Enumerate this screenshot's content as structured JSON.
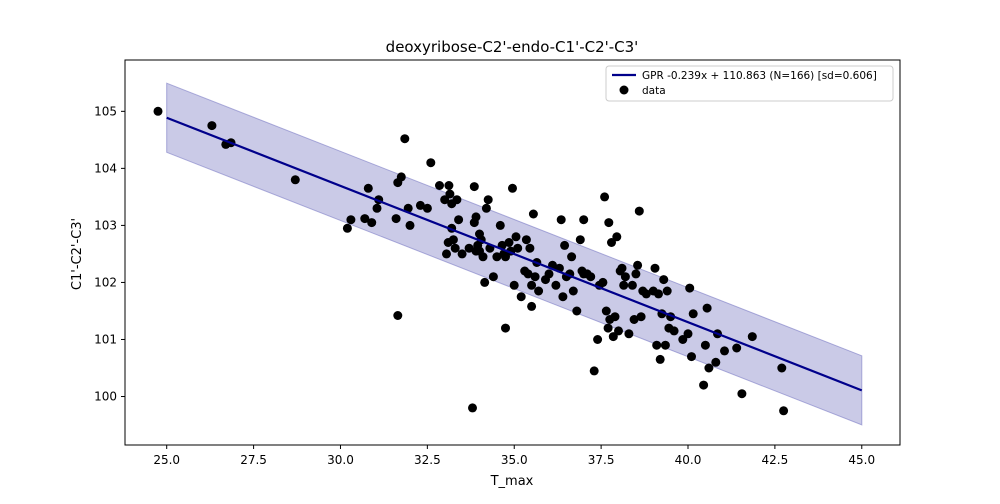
{
  "chart_data": {
    "type": "scatter",
    "title": "deoxyribose-C2'-endo-C1'-C2'-C3'",
    "xlabel": "T_max",
    "ylabel": "C1'-C2'-C3'",
    "xlim": [
      23.8,
      46.1
    ],
    "ylim": [
      99.15,
      105.9
    ],
    "xticks": [
      25.0,
      27.5,
      30.0,
      32.5,
      35.0,
      37.5,
      40.0,
      42.5,
      45.0
    ],
    "xtick_labels": [
      "25.0",
      "27.5",
      "30.0",
      "32.5",
      "35.0",
      "37.5",
      "40.0",
      "42.5",
      "45.0"
    ],
    "yticks": [
      100,
      101,
      102,
      103,
      104,
      105
    ],
    "ytick_labels": [
      "100",
      "101",
      "102",
      "103",
      "104",
      "105"
    ],
    "grid": false,
    "legend_position": "top-right",
    "series": [
      {
        "name": "GPR -0.239x + 110.863 (N=166) [sd=0.606]",
        "kind": "line",
        "color": "#00008b",
        "band_color": "#7b7bc4",
        "x": [
          25.0,
          45.0
        ],
        "y": [
          104.888,
          100.108
        ],
        "band_sd": 0.606
      },
      {
        "name": "data",
        "kind": "scatter",
        "color": "#000000",
        "points": [
          [
            24.75,
            105.0
          ],
          [
            26.3,
            104.75
          ],
          [
            26.7,
            104.42
          ],
          [
            26.85,
            104.45
          ],
          [
            28.7,
            103.8
          ],
          [
            30.2,
            102.95
          ],
          [
            30.3,
            103.1
          ],
          [
            30.7,
            103.12
          ],
          [
            30.8,
            103.65
          ],
          [
            30.9,
            103.05
          ],
          [
            31.05,
            103.3
          ],
          [
            31.1,
            103.45
          ],
          [
            31.6,
            103.12
          ],
          [
            31.65,
            101.42
          ],
          [
            31.65,
            103.75
          ],
          [
            31.75,
            103.85
          ],
          [
            31.85,
            104.52
          ],
          [
            31.95,
            103.3
          ],
          [
            32.0,
            103.0
          ],
          [
            32.3,
            103.35
          ],
          [
            32.5,
            103.3
          ],
          [
            32.6,
            104.1
          ],
          [
            32.85,
            103.7
          ],
          [
            33.0,
            103.45
          ],
          [
            33.05,
            102.5
          ],
          [
            33.1,
            102.7
          ],
          [
            33.12,
            103.7
          ],
          [
            33.15,
            103.55
          ],
          [
            33.2,
            103.38
          ],
          [
            33.2,
            102.95
          ],
          [
            33.25,
            102.75
          ],
          [
            33.3,
            102.6
          ],
          [
            33.35,
            103.45
          ],
          [
            33.4,
            103.1
          ],
          [
            33.5,
            102.5
          ],
          [
            33.7,
            102.6
          ],
          [
            33.8,
            99.8
          ],
          [
            33.85,
            103.68
          ],
          [
            33.85,
            103.05
          ],
          [
            33.9,
            103.15
          ],
          [
            33.9,
            102.55
          ],
          [
            33.95,
            102.65
          ],
          [
            34.0,
            102.85
          ],
          [
            34.0,
            102.55
          ],
          [
            34.05,
            102.75
          ],
          [
            34.1,
            102.45
          ],
          [
            34.15,
            102.0
          ],
          [
            34.2,
            103.3
          ],
          [
            34.25,
            103.45
          ],
          [
            34.3,
            102.6
          ],
          [
            34.4,
            102.1
          ],
          [
            34.5,
            102.45
          ],
          [
            34.6,
            103.0
          ],
          [
            34.65,
            102.65
          ],
          [
            34.7,
            102.5
          ],
          [
            34.75,
            102.45
          ],
          [
            34.75,
            101.2
          ],
          [
            34.85,
            102.7
          ],
          [
            34.9,
            102.55
          ],
          [
            34.95,
            103.65
          ],
          [
            35.0,
            101.95
          ],
          [
            35.05,
            102.8
          ],
          [
            35.1,
            102.6
          ],
          [
            35.2,
            101.75
          ],
          [
            35.3,
            102.2
          ],
          [
            35.35,
            102.75
          ],
          [
            35.4,
            102.15
          ],
          [
            35.45,
            102.6
          ],
          [
            35.5,
            101.95
          ],
          [
            35.5,
            101.58
          ],
          [
            35.55,
            103.2
          ],
          [
            35.6,
            102.1
          ],
          [
            35.65,
            102.35
          ],
          [
            35.7,
            101.85
          ],
          [
            35.9,
            102.05
          ],
          [
            36.0,
            102.15
          ],
          [
            36.1,
            102.3
          ],
          [
            36.2,
            101.95
          ],
          [
            36.3,
            102.25
          ],
          [
            36.35,
            103.1
          ],
          [
            36.4,
            101.75
          ],
          [
            36.45,
            102.65
          ],
          [
            36.5,
            102.1
          ],
          [
            36.6,
            102.15
          ],
          [
            36.65,
            102.45
          ],
          [
            36.7,
            101.85
          ],
          [
            36.8,
            101.5
          ],
          [
            36.9,
            102.75
          ],
          [
            36.95,
            102.2
          ],
          [
            37.0,
            102.15
          ],
          [
            37.0,
            103.1
          ],
          [
            37.1,
            102.15
          ],
          [
            37.2,
            102.1
          ],
          [
            37.3,
            100.45
          ],
          [
            37.4,
            101.0
          ],
          [
            37.45,
            101.95
          ],
          [
            37.55,
            102.0
          ],
          [
            37.6,
            103.5
          ],
          [
            37.65,
            101.5
          ],
          [
            37.7,
            101.2
          ],
          [
            37.72,
            103.05
          ],
          [
            37.75,
            101.35
          ],
          [
            37.8,
            102.7
          ],
          [
            37.85,
            101.05
          ],
          [
            37.9,
            101.4
          ],
          [
            37.95,
            102.8
          ],
          [
            38.0,
            101.15
          ],
          [
            38.05,
            102.2
          ],
          [
            38.1,
            102.25
          ],
          [
            38.15,
            101.95
          ],
          [
            38.2,
            102.1
          ],
          [
            38.3,
            101.1
          ],
          [
            38.4,
            101.95
          ],
          [
            38.45,
            101.35
          ],
          [
            38.5,
            102.15
          ],
          [
            38.55,
            102.3
          ],
          [
            38.6,
            103.25
          ],
          [
            38.65,
            101.4
          ],
          [
            38.7,
            101.85
          ],
          [
            38.8,
            101.8
          ],
          [
            39.0,
            101.85
          ],
          [
            39.05,
            102.25
          ],
          [
            39.1,
            100.9
          ],
          [
            39.15,
            101.8
          ],
          [
            39.2,
            100.65
          ],
          [
            39.25,
            101.45
          ],
          [
            39.3,
            102.05
          ],
          [
            39.35,
            100.9
          ],
          [
            39.4,
            101.85
          ],
          [
            39.45,
            101.2
          ],
          [
            39.5,
            101.4
          ],
          [
            39.6,
            101.15
          ],
          [
            39.85,
            101.0
          ],
          [
            40.0,
            101.1
          ],
          [
            40.05,
            101.9
          ],
          [
            40.1,
            100.7
          ],
          [
            40.15,
            101.45
          ],
          [
            40.45,
            100.2
          ],
          [
            40.5,
            100.9
          ],
          [
            40.55,
            101.55
          ],
          [
            40.6,
            100.5
          ],
          [
            40.8,
            100.6
          ],
          [
            40.85,
            101.1
          ],
          [
            41.05,
            100.8
          ],
          [
            41.4,
            100.85
          ],
          [
            41.55,
            100.05
          ],
          [
            41.85,
            101.05
          ],
          [
            42.7,
            100.5
          ],
          [
            42.75,
            99.75
          ]
        ]
      }
    ]
  }
}
